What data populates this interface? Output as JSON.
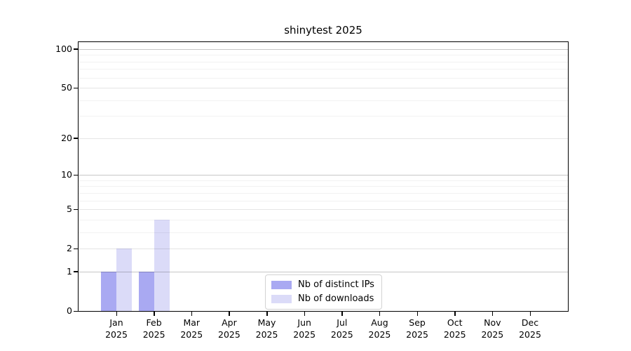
{
  "title": "shinytest 2025",
  "chart_data": {
    "type": "bar",
    "title": "shinytest 2025",
    "xlabel": "",
    "ylabel": "",
    "categories": [
      "Jan",
      "Feb",
      "Mar",
      "Apr",
      "May",
      "Jun",
      "Jul",
      "Aug",
      "Sep",
      "Oct",
      "Nov",
      "Dec"
    ],
    "category_year": "2025",
    "series": [
      {
        "name": "Nb of distinct IPs",
        "color": "#a9a9f2",
        "values": [
          1,
          1,
          0,
          0,
          0,
          0,
          0,
          0,
          0,
          0,
          0,
          0
        ]
      },
      {
        "name": "Nb of downloads",
        "color": "#dbdbf8",
        "values": [
          2,
          4,
          0,
          0,
          0,
          0,
          0,
          0,
          0,
          0,
          0,
          0
        ]
      }
    ],
    "yscale": "log1p",
    "ylim": [
      0,
      113
    ],
    "yticks": [
      0,
      1,
      2,
      5,
      10,
      20,
      50,
      100
    ],
    "yticks_emphasized": [
      1,
      10,
      100
    ],
    "yticks_minor": [
      3,
      4,
      6,
      7,
      8,
      9,
      30,
      40,
      60,
      70,
      80,
      90
    ],
    "grid": "horizontal",
    "legend_position": "lower center"
  }
}
